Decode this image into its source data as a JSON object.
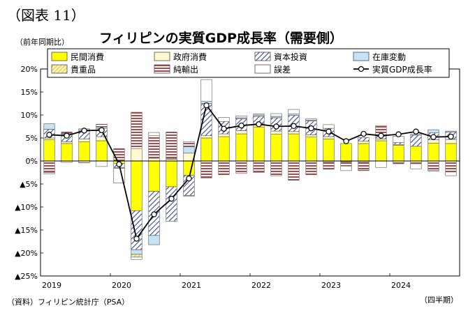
{
  "figure_label": "（図表 11）",
  "unit_label": "（前年同期比）",
  "source_label": "（資料）フィリピン統計庁（PSA）",
  "period_label": "（四半期）",
  "chart_data": {
    "type": "bar",
    "stacked": true,
    "title": "フィリピンの実質GDP成長率（需要側）",
    "ylim": [
      -25,
      20
    ],
    "yticks": [
      20,
      15,
      10,
      5,
      0,
      -5,
      -10,
      -15,
      -20,
      -25
    ],
    "ytick_labels": [
      "20%",
      "15%",
      "10%",
      "5%",
      "0%",
      "▲5%",
      "▲10%",
      "▲15%",
      "▲20%",
      "▲25%"
    ],
    "year_labels": [
      "2019",
      "2020",
      "2021",
      "2022",
      "2023",
      "2024"
    ],
    "legend_position": "top",
    "categories": [
      "2019Q1",
      "2019Q2",
      "2019Q3",
      "2019Q4",
      "2020Q1",
      "2020Q2",
      "2020Q3",
      "2020Q4",
      "2021Q1",
      "2021Q2",
      "2021Q3",
      "2021Q4",
      "2022Q1",
      "2022Q2",
      "2022Q3",
      "2022Q4",
      "2023Q1",
      "2023Q2",
      "2023Q3",
      "2023Q4",
      "2024Q1",
      "2024Q2",
      "2024Q3",
      "2024Q4"
    ],
    "series": [
      {
        "name": "民間消費",
        "key": "pc",
        "fill": "#ffff00",
        "values": [
          4.6,
          3.8,
          4.2,
          4.4,
          -0.5,
          -10.8,
          -6.6,
          -5.6,
          -3.1,
          5.0,
          5.3,
          5.9,
          7.4,
          5.8,
          5.9,
          5.2,
          4.8,
          3.8,
          3.8,
          4.4,
          3.4,
          3.2,
          3.9,
          3.8
        ]
      },
      {
        "name": "政府消費",
        "key": "gc",
        "fill": "#fffacd",
        "values": [
          0.4,
          0.4,
          0.6,
          0.9,
          0.1,
          2.7,
          0.6,
          0.4,
          1.7,
          0.5,
          0.6,
          0.7,
          0.7,
          0.7,
          0.5,
          0.5,
          0.5,
          0.0,
          0.5,
          0.4,
          0.2,
          0.0,
          0.7,
          0.9
        ]
      },
      {
        "name": "資本投資",
        "key": "ci",
        "fill": "stripe-blue",
        "values": [
          1.9,
          1.6,
          1.7,
          1.8,
          -0.9,
          -8.5,
          -9.6,
          -7.5,
          -4.4,
          7.0,
          2.7,
          2.6,
          1.6,
          2.9,
          3.5,
          3.0,
          1.8,
          -0.1,
          0.8,
          0.6,
          0.4,
          2.4,
          1.5,
          1.6
        ]
      },
      {
        "name": "在庫変動",
        "key": "inv",
        "fill": "#c6e2f5",
        "values": [
          1.2,
          0.2,
          0.3,
          0.3,
          -0.2,
          -1.0,
          -2.0,
          0.1,
          1.4,
          0.5,
          0.0,
          0.2,
          0.3,
          0.3,
          0.3,
          0.2,
          -0.3,
          -0.2,
          -0.3,
          0.1,
          0.0,
          0.2,
          0.7,
          0.2
        ]
      },
      {
        "name": "貴重品",
        "key": "val",
        "fill": "stripe-olive",
        "values": [
          0.0,
          0.0,
          0.0,
          0.0,
          0.0,
          -0.6,
          0.0,
          0.0,
          0.0,
          0.0,
          0.0,
          0.0,
          0.0,
          0.0,
          0.0,
          0.0,
          0.0,
          0.0,
          0.0,
          0.0,
          0.0,
          0.0,
          0.0,
          0.0
        ]
      },
      {
        "name": "純輸出",
        "key": "nx",
        "fill": "stripe-red",
        "values": [
          -2.5,
          0.3,
          -0.4,
          0.6,
          2.6,
          7.9,
          4.9,
          5.8,
          1.1,
          -3.7,
          -3.0,
          -2.7,
          -2.5,
          -3.2,
          -4.2,
          -3.0,
          -1.5,
          -0.8,
          -1.7,
          2.2,
          -0.6,
          -0.6,
          -2.0,
          -2.4
        ]
      },
      {
        "name": "誤差",
        "key": "err",
        "fill": "#ffffff",
        "values": [
          -0.3,
          -0.3,
          0.2,
          -1.2,
          -3.2,
          -0.5,
          0.7,
          0.0,
          -0.2,
          4.7,
          0.9,
          0.4,
          0.2,
          0.6,
          1.0,
          0.3,
          0.8,
          -1.0,
          -0.1,
          -1.4,
          1.4,
          -1.1,
          -0.2,
          -0.8
        ]
      },
      {
        "name": "実質GDP成長率",
        "key": "gdp",
        "type": "line",
        "values": [
          5.7,
          5.5,
          6.6,
          6.7,
          -0.7,
          -16.9,
          -11.6,
          -8.2,
          -3.8,
          12.1,
          7.0,
          7.7,
          8.0,
          7.5,
          7.6,
          7.1,
          6.4,
          4.3,
          5.9,
          5.5,
          5.8,
          6.4,
          5.2,
          5.3
        ]
      }
    ]
  }
}
